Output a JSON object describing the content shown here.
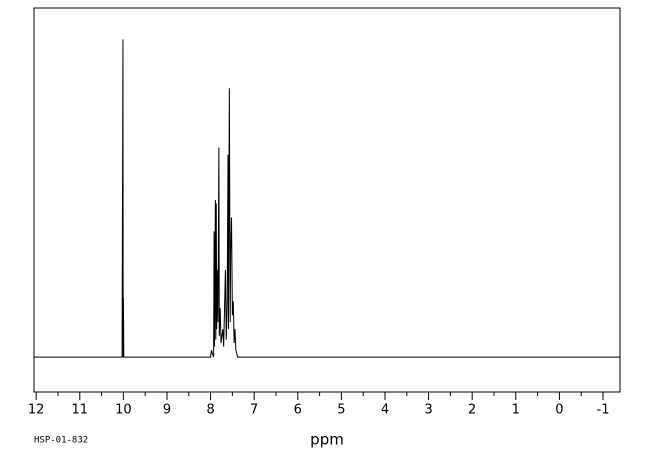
{
  "chart_data": {
    "type": "line",
    "xlabel": "ppm",
    "note": "HSP-01-832",
    "xlim": [
      12.05,
      -1.39
    ],
    "ylim": [
      -10,
      100
    ],
    "xticks": [
      12,
      11,
      10,
      9,
      8,
      7,
      6,
      5,
      4,
      3,
      2,
      1,
      0,
      -1
    ],
    "xminorticks": [
      11.5,
      10.5,
      9.5,
      8.5,
      7.5,
      6.5,
      5.5,
      4.5,
      3.5,
      2.5,
      1.5,
      0.5,
      -0.5
    ],
    "color": "#000000",
    "x": [
      12.05,
      10.03,
      10.01,
      10.005,
      10.0,
      9.99,
      8.0,
      7.98,
      7.96,
      7.93,
      7.92,
      7.91,
      7.89,
      7.88,
      7.87,
      7.86,
      7.85,
      7.83,
      7.81,
      7.8,
      7.78,
      7.76,
      7.72,
      7.7,
      7.66,
      7.64,
      7.62,
      7.6,
      7.59,
      7.57,
      7.55,
      7.54,
      7.52,
      7.5,
      7.48,
      7.46,
      7.44,
      7.42,
      7.38,
      -1.39
    ],
    "values": [
      0,
      0,
      91,
      0,
      17,
      0,
      0,
      2,
      1,
      0,
      36,
      3,
      45,
      5,
      44,
      8,
      25,
      10,
      60,
      6,
      14,
      4,
      8,
      3,
      25,
      5,
      15,
      58,
      8,
      77,
      10,
      30,
      40,
      12,
      16,
      4,
      8,
      2,
      0,
      0
    ]
  }
}
